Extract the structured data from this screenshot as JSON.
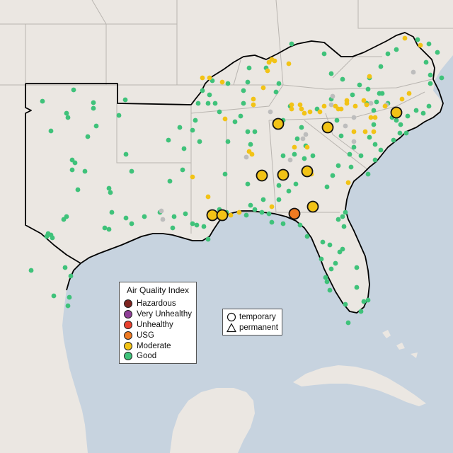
{
  "legend": {
    "title": "Air Quality Index",
    "categories": [
      {
        "label": "Hazardous",
        "color": "#7e2420"
      },
      {
        "label": "Very Unhealthy",
        "color": "#8f3f97"
      },
      {
        "label": "Unhealthy",
        "color": "#e8412f"
      },
      {
        "label": "USG",
        "color": "#ee7a22"
      },
      {
        "label": "Moderate",
        "color": "#f2c316"
      },
      {
        "label": "Good",
        "color": "#3fc27a"
      }
    ]
  },
  "monitor_types": {
    "temporary": "temporary",
    "permanent": "permanent"
  },
  "colors": {
    "land": "#ebe7e2",
    "water": "#c7d3df",
    "boundary": "#000000",
    "state_lines": "#b9b5b0",
    "no_data": "#bdbdbd"
  },
  "temporary_monitors": [
    {
      "category": "Moderate"
    },
    {
      "category": "Moderate"
    },
    {
      "category": "Moderate"
    },
    {
      "category": "Moderate"
    },
    {
      "category": "Moderate"
    },
    {
      "category": "Moderate"
    },
    {
      "category": "Moderate"
    },
    {
      "category": "USG"
    },
    {
      "category": "Moderate"
    },
    {
      "category": "Moderate"
    }
  ]
}
